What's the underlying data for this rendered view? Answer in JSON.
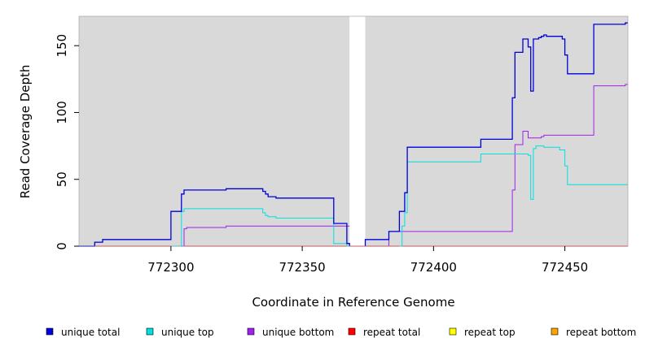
{
  "chart_data": {
    "type": "line",
    "title": "",
    "xlabel": "Coordinate in Reference Genome",
    "ylabel": "Read Coverage Depth",
    "xlim": [
      772265,
      772474
    ],
    "ylim": [
      0,
      172
    ],
    "xticks": [
      772300,
      772350,
      772400,
      772450
    ],
    "yticks": [
      0,
      50,
      100,
      150
    ],
    "grid": false,
    "background": "#d9d9d9",
    "gap_region": [
      772368,
      772374
    ],
    "legend_position": "bottom",
    "series": [
      {
        "name": "unique total",
        "color": "#0000dd",
        "points": [
          [
            772265,
            0
          ],
          [
            772271,
            0
          ],
          [
            772271,
            3
          ],
          [
            772272,
            3
          ],
          [
            772272,
            3
          ],
          [
            772274,
            3
          ],
          [
            772274,
            5
          ],
          [
            772300,
            5
          ],
          [
            772300,
            26
          ],
          [
            772304,
            26
          ],
          [
            772304,
            39
          ],
          [
            772305,
            39
          ],
          [
            772305,
            42
          ],
          [
            772321,
            42
          ],
          [
            772321,
            43
          ],
          [
            772335,
            43
          ],
          [
            772335,
            41
          ],
          [
            772336,
            41
          ],
          [
            772336,
            39
          ],
          [
            772337,
            39
          ],
          [
            772337,
            37
          ],
          [
            772340,
            37
          ],
          [
            772340,
            36
          ],
          [
            772362,
            36
          ],
          [
            772362,
            17
          ],
          [
            772367,
            17
          ],
          [
            772367,
            2
          ],
          [
            772368,
            2
          ],
          [
            772368,
            0
          ]
        ],
        "points2": [
          [
            772374,
            0
          ],
          [
            772374,
            5
          ],
          [
            772383,
            5
          ],
          [
            772383,
            11
          ],
          [
            772387,
            11
          ],
          [
            772387,
            26
          ],
          [
            772389,
            26
          ],
          [
            772389,
            40
          ],
          [
            772390,
            40
          ],
          [
            772390,
            74
          ],
          [
            772418,
            74
          ],
          [
            772418,
            80
          ],
          [
            772430,
            80
          ],
          [
            772430,
            111
          ],
          [
            772431,
            111
          ],
          [
            772431,
            145
          ],
          [
            772434,
            145
          ],
          [
            772434,
            155
          ],
          [
            772436,
            155
          ],
          [
            772436,
            149
          ],
          [
            772437,
            149
          ],
          [
            772437,
            116
          ],
          [
            772438,
            116
          ],
          [
            772438,
            155
          ],
          [
            772440,
            155
          ],
          [
            772440,
            156
          ],
          [
            772441,
            156
          ],
          [
            772441,
            157
          ],
          [
            772442,
            157
          ],
          [
            772442,
            158
          ],
          [
            772443,
            158
          ],
          [
            772443,
            157
          ],
          [
            772449,
            157
          ],
          [
            772449,
            155
          ],
          [
            772450,
            155
          ],
          [
            772450,
            143
          ],
          [
            772451,
            143
          ],
          [
            772451,
            129
          ],
          [
            772461,
            129
          ],
          [
            772461,
            166
          ],
          [
            772473,
            166
          ],
          [
            772473,
            167
          ],
          [
            772474,
            167
          ]
        ]
      },
      {
        "name": "unique top",
        "color": "#00e0e0",
        "points": [
          [
            772300,
            0
          ],
          [
            772304,
            0
          ],
          [
            772304,
            26
          ],
          [
            772305,
            26
          ],
          [
            772305,
            28
          ],
          [
            772335,
            28
          ],
          [
            772335,
            25
          ],
          [
            772336,
            25
          ],
          [
            772336,
            23
          ],
          [
            772337,
            23
          ],
          [
            772337,
            22
          ],
          [
            772340,
            22
          ],
          [
            772340,
            21
          ],
          [
            772362,
            21
          ],
          [
            772362,
            2
          ],
          [
            772367,
            2
          ],
          [
            772367,
            0
          ],
          [
            772368,
            0
          ]
        ],
        "points2": [
          [
            772387,
            0
          ],
          [
            772388,
            0
          ],
          [
            772388,
            15
          ],
          [
            772389,
            15
          ],
          [
            772389,
            25
          ],
          [
            772390,
            25
          ],
          [
            772390,
            63
          ],
          [
            772418,
            63
          ],
          [
            772418,
            69
          ],
          [
            772436,
            69
          ],
          [
            772436,
            68
          ],
          [
            772437,
            68
          ],
          [
            772437,
            35
          ],
          [
            772438,
            35
          ],
          [
            772438,
            73
          ],
          [
            772439,
            73
          ],
          [
            772439,
            75
          ],
          [
            772442,
            75
          ],
          [
            772442,
            74
          ],
          [
            772448,
            74
          ],
          [
            772448,
            72
          ],
          [
            772450,
            72
          ],
          [
            772450,
            60
          ],
          [
            772451,
            60
          ],
          [
            772451,
            46
          ],
          [
            772474,
            46
          ]
        ]
      },
      {
        "name": "unique bottom",
        "color": "#a020f0",
        "points": [
          [
            772304,
            0
          ],
          [
            772305,
            0
          ],
          [
            772305,
            13
          ],
          [
            772306,
            13
          ],
          [
            772306,
            14
          ],
          [
            772321,
            14
          ],
          [
            772321,
            15
          ],
          [
            772362,
            15
          ],
          [
            772362,
            15
          ],
          [
            772368,
            15
          ]
        ],
        "points2": [
          [
            772383,
            0
          ],
          [
            772383,
            11
          ],
          [
            772430,
            11
          ],
          [
            772430,
            42
          ],
          [
            772431,
            42
          ],
          [
            772431,
            76
          ],
          [
            772434,
            76
          ],
          [
            772434,
            86
          ],
          [
            772436,
            86
          ],
          [
            772436,
            81
          ],
          [
            772441,
            81
          ],
          [
            772441,
            82
          ],
          [
            772442,
            82
          ],
          [
            772442,
            83
          ],
          [
            772461,
            83
          ],
          [
            772461,
            120
          ],
          [
            772473,
            120
          ],
          [
            772473,
            121
          ],
          [
            772474,
            121
          ]
        ]
      },
      {
        "name": "repeat total",
        "color": "#ff0000",
        "points": [
          [
            772265,
            0
          ],
          [
            772474,
            0
          ]
        ],
        "points2": []
      },
      {
        "name": "repeat top",
        "color": "#ffff00",
        "points": [
          [
            772265,
            0
          ],
          [
            772474,
            0
          ]
        ],
        "points2": []
      },
      {
        "name": "repeat bottom",
        "color": "#ffa500",
        "points": [
          [
            772265,
            0
          ],
          [
            772474,
            0
          ]
        ],
        "points2": []
      }
    ]
  }
}
